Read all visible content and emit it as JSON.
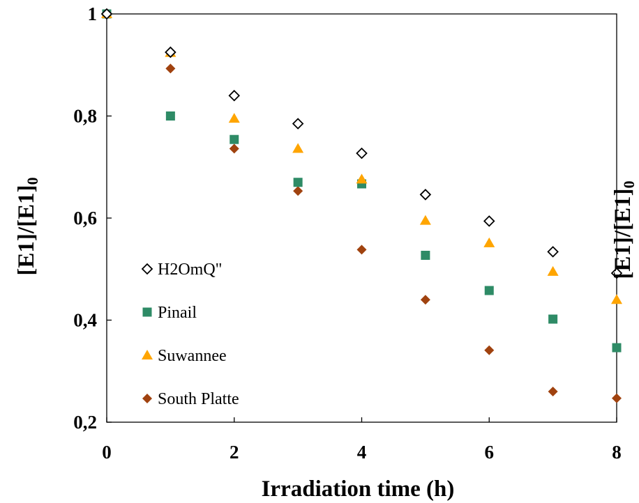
{
  "chart_data": {
    "type": "scatter",
    "xlabel": "Irradiation time (h)",
    "ylabel": "[E1]/[E1]",
    "ylabel_subscript": "0",
    "ylabel_right": "[E1]/[E1]",
    "ylabel_right_subscript": "0",
    "xlim": [
      0,
      8
    ],
    "ylim": [
      0.2,
      1
    ],
    "x_ticks": [
      0,
      2,
      4,
      6,
      8
    ],
    "x_tick_labels": [
      "0",
      "2",
      "4",
      "6",
      "8"
    ],
    "y_ticks": [
      0.2,
      0.4,
      0.6,
      0.8,
      1.0
    ],
    "y_tick_labels": [
      "0,2",
      "0,4",
      "0,6",
      "0,8",
      "1"
    ],
    "grid": false,
    "legend_position": "left",
    "series": [
      {
        "name": "H2OmQ\"",
        "marker": "diamond-open",
        "color": "#000000",
        "x": [
          0,
          1,
          2,
          3,
          4,
          5,
          6,
          7,
          8
        ],
        "y": [
          1.0,
          0.925,
          0.84,
          0.785,
          0.727,
          0.646,
          0.594,
          0.534,
          0.492
        ]
      },
      {
        "name": "Pinail",
        "marker": "square",
        "color": "#2e8b66",
        "x": [
          0,
          1,
          2,
          3,
          4,
          5,
          6,
          7,
          8
        ],
        "y": [
          1.0,
          0.8,
          0.754,
          0.67,
          0.667,
          0.527,
          0.458,
          0.402,
          0.346
        ]
      },
      {
        "name": "Suwannee",
        "marker": "triangle",
        "color": "#ffa500",
        "x": [
          0,
          1,
          2,
          3,
          4,
          5,
          6,
          7,
          8
        ],
        "y": [
          1.0,
          0.924,
          0.795,
          0.736,
          0.676,
          0.595,
          0.551,
          0.495,
          0.44
        ]
      },
      {
        "name": "South Platte",
        "marker": "diamond",
        "color": "#a0420f",
        "x": [
          0,
          1,
          2,
          3,
          4,
          5,
          6
        ],
        "y": [
          1.0,
          0.893,
          0.736,
          0.653,
          0.538,
          0.44,
          0.341
        ]
      }
    ],
    "extra_points": {
      "series": "South Platte",
      "x": [
        7,
        8
      ],
      "y": [
        0.26,
        0.247
      ]
    }
  }
}
